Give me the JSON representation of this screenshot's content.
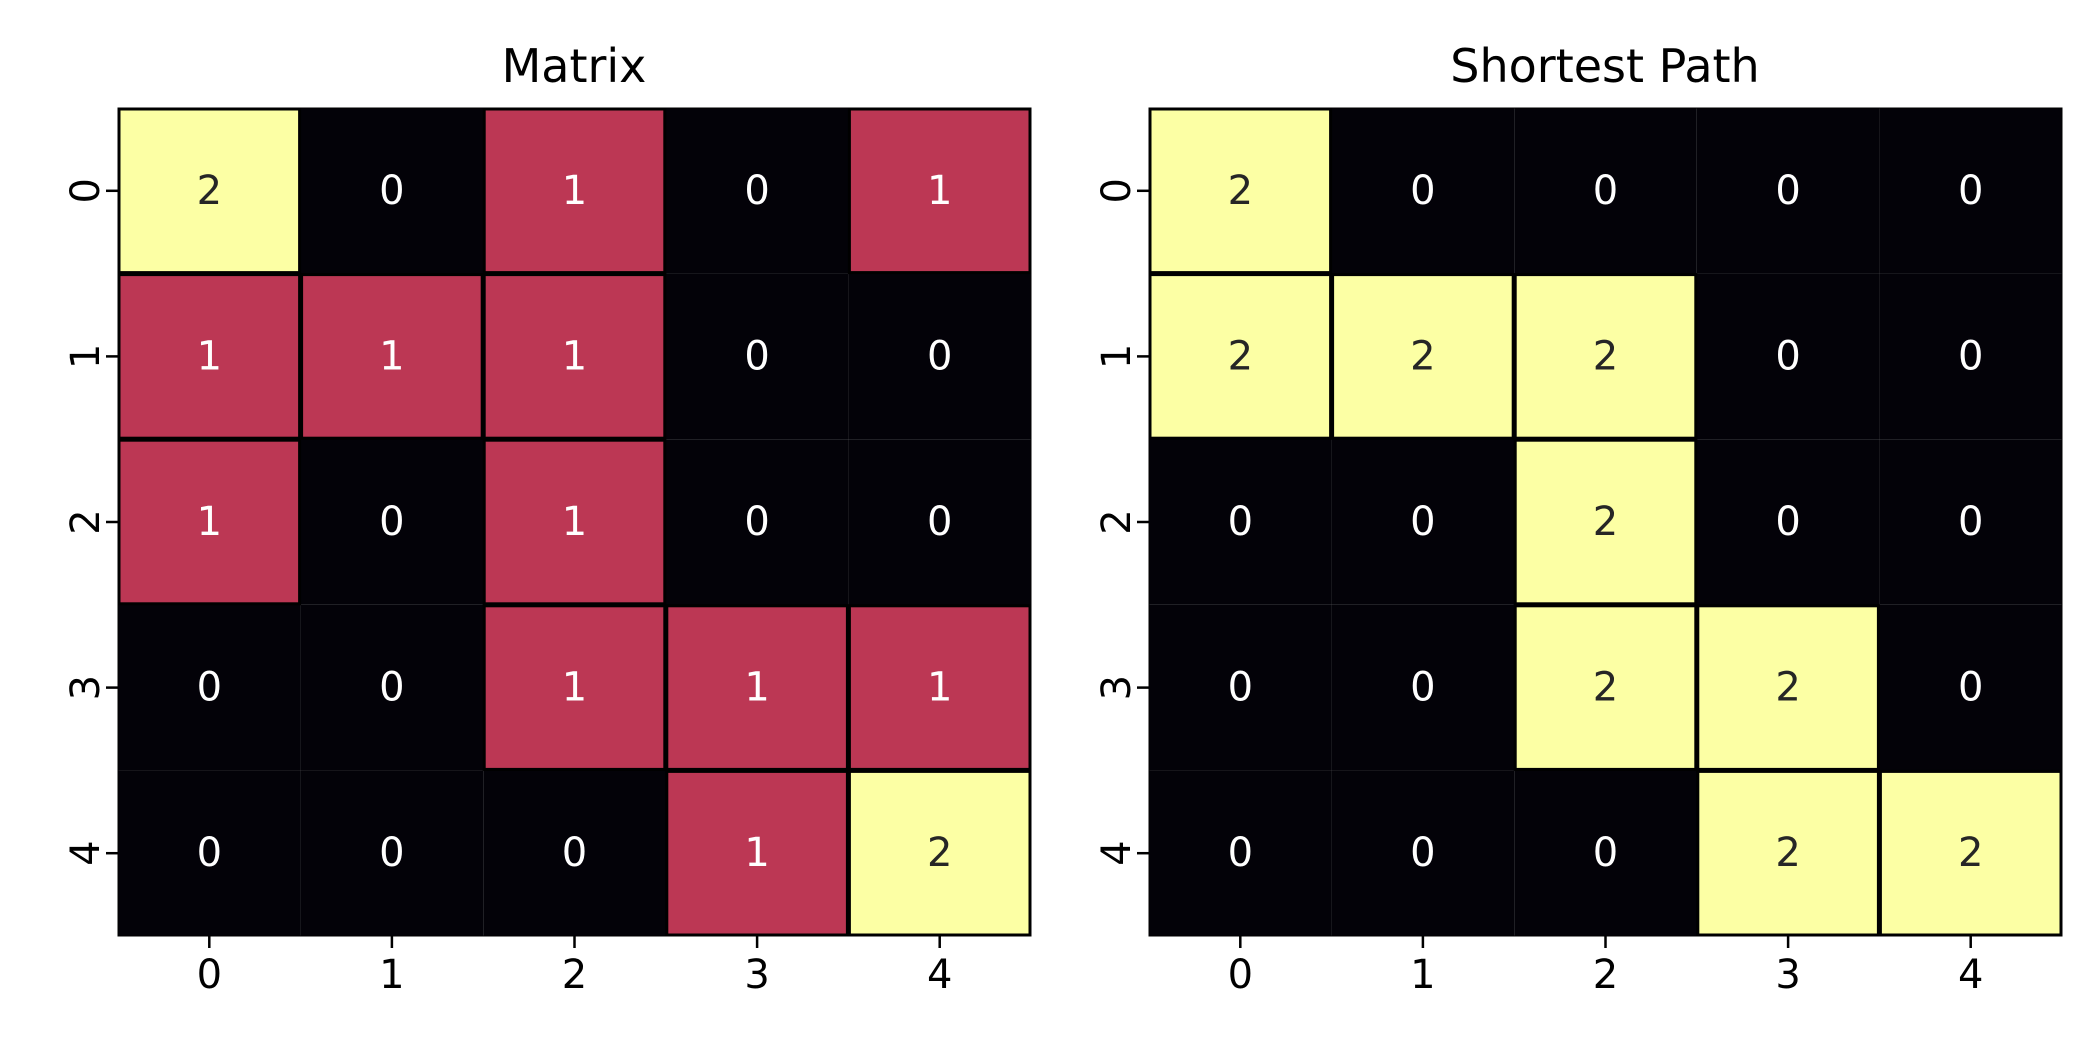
{
  "chart_data": [
    {
      "type": "heatmap",
      "title": "Matrix",
      "x_ticks": [
        "0",
        "1",
        "2",
        "3",
        "4"
      ],
      "y_ticks": [
        "0",
        "1",
        "2",
        "3",
        "4"
      ],
      "values": [
        [
          2,
          0,
          1,
          0,
          1
        ],
        [
          1,
          1,
          1,
          0,
          0
        ],
        [
          1,
          0,
          1,
          0,
          0
        ],
        [
          0,
          0,
          1,
          1,
          1
        ],
        [
          0,
          0,
          0,
          1,
          2
        ]
      ],
      "color_map": {
        "0": "#030208",
        "1": "#BC3754",
        "2": "#FCFFA4"
      },
      "text_colors": {
        "0": "#ffffff",
        "1": "#ffffff",
        "2": "#262626"
      },
      "cell_border_color": "#000000",
      "colorbar": false
    },
    {
      "type": "heatmap",
      "title": "Shortest Path",
      "x_ticks": [
        "0",
        "1",
        "2",
        "3",
        "4"
      ],
      "y_ticks": [
        "0",
        "1",
        "2",
        "3",
        "4"
      ],
      "values": [
        [
          2,
          0,
          0,
          0,
          0
        ],
        [
          2,
          2,
          2,
          0,
          0
        ],
        [
          0,
          0,
          2,
          0,
          0
        ],
        [
          0,
          0,
          2,
          2,
          0
        ],
        [
          0,
          0,
          0,
          2,
          2
        ]
      ],
      "color_map": {
        "0": "#030208",
        "2": "#FCFFA4"
      },
      "text_colors": {
        "0": "#ffffff",
        "2": "#262626"
      },
      "cell_border_color": "#000000",
      "colorbar": false
    }
  ]
}
